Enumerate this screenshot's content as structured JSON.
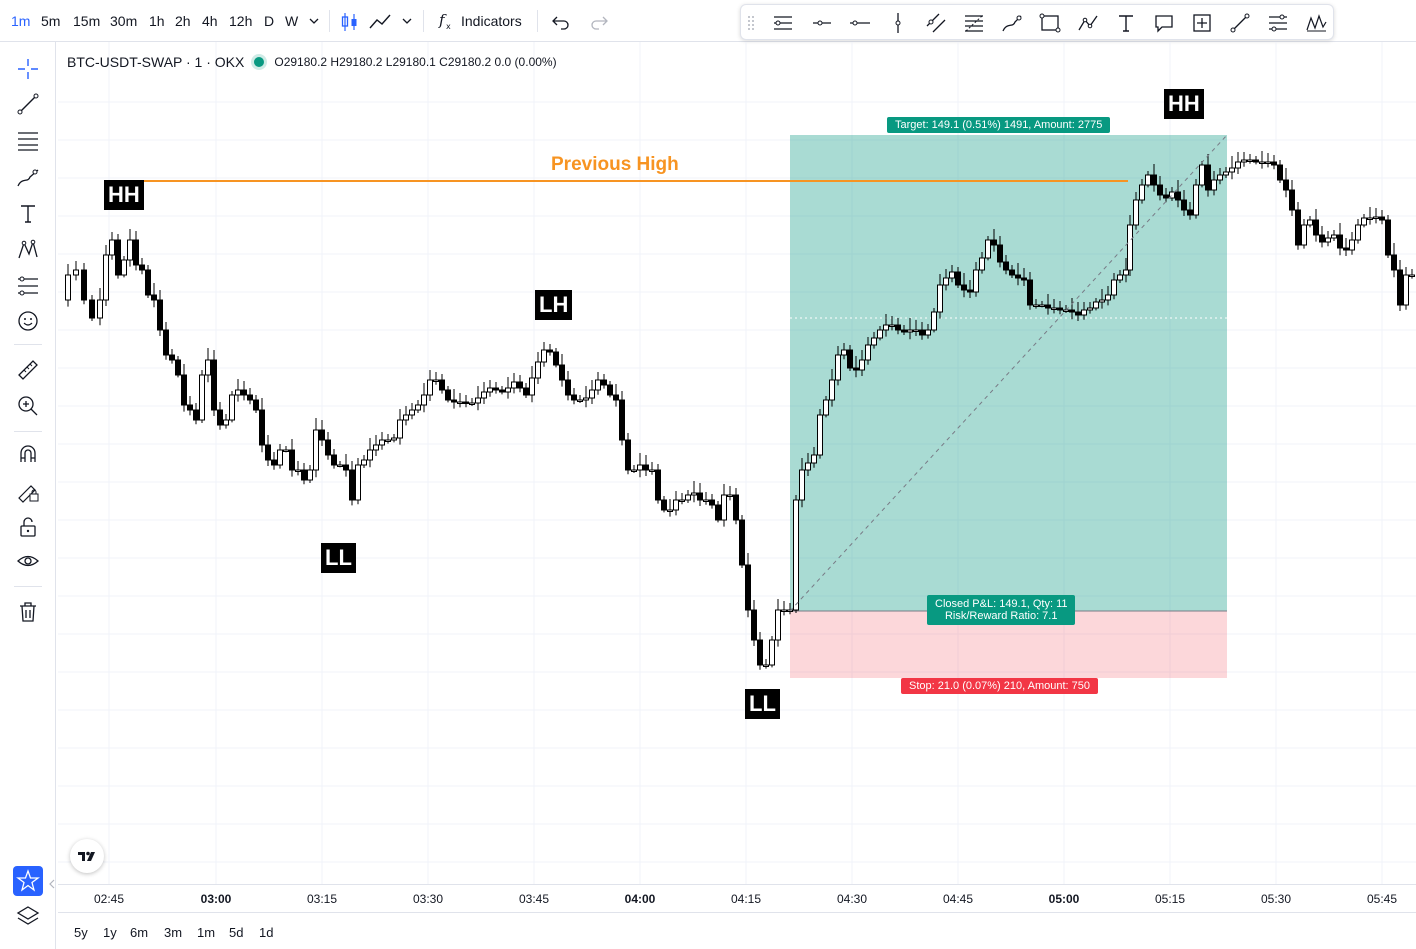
{
  "toolbar": {
    "timeframes": [
      "1m",
      "5m",
      "15m",
      "30m",
      "1h",
      "2h",
      "4h",
      "12h",
      "D",
      "W"
    ],
    "active_timeframe": "1m",
    "indicators_label": "Indicators",
    "accent_color": "#2962ff"
  },
  "legend": {
    "symbol": "BTC-USDT-SWAP · 1 · OKX",
    "ohlc": "O29180.2  H29180.2  L29180.1  C29180.2  0.0 (0.00%)",
    "status_color": "#089981"
  },
  "annotations": {
    "previous_high": "Previous High",
    "hh1": "HH",
    "hh2": "HH",
    "lh": "LH",
    "ll1": "LL",
    "ll2": "LL",
    "target": "Target: 149.1 (0.51%) 1491, Amount: 2775",
    "closed_pnl": "Closed P&L: 149.1, Qty: 11",
    "risk_reward": "Risk/Reward Ratio: 7.1",
    "stop": "Stop: 21.0 (0.07%) 210, Amount: 750",
    "profit_color": "#089981",
    "loss_color": "#f23645",
    "previous_high_color": "#f79422"
  },
  "time_axis": {
    "ticks": [
      "02:45",
      "03:00",
      "03:15",
      "03:30",
      "03:45",
      "04:00",
      "04:15",
      "04:30",
      "04:45",
      "05:00",
      "05:15",
      "05:30",
      "05:45"
    ],
    "bold_ticks": [
      "03:00",
      "04:00",
      "05:00"
    ]
  },
  "date_ranges": [
    "5y",
    "1y",
    "6m",
    "3m",
    "1m",
    "5d",
    "1d"
  ]
}
